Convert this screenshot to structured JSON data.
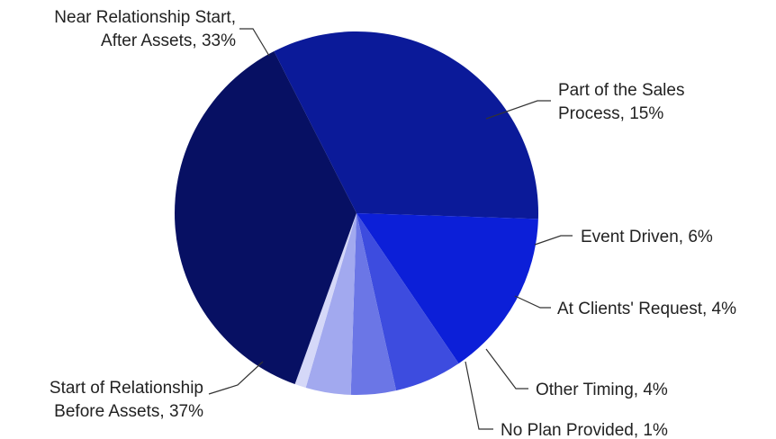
{
  "chart_data": {
    "type": "pie",
    "title": "",
    "slices": [
      {
        "label_lines": [
          "Near Relationship Start,",
          "After Assets, 33%"
        ],
        "value": 33,
        "color": "#0b1a99"
      },
      {
        "label_lines": [
          "Part of the Sales",
          "Process, 15%"
        ],
        "value": 15,
        "color": "#0c1fd8"
      },
      {
        "label_lines": [
          "Event Driven, 6%"
        ],
        "value": 6,
        "color": "#3d4cdf"
      },
      {
        "label_lines": [
          "At Clients' Request, 4%"
        ],
        "value": 4,
        "color": "#6b76e6"
      },
      {
        "label_lines": [
          "Other Timing, 4%"
        ],
        "value": 4,
        "color": "#a2a9ef"
      },
      {
        "label_lines": [
          "No Plan Provided, 1%"
        ],
        "value": 1,
        "color": "#d5d8f8"
      },
      {
        "label_lines": [
          "Start of Relationship",
          "Before Assets, 37%"
        ],
        "value": 37,
        "color": "#071063"
      }
    ],
    "legend": "none"
  }
}
